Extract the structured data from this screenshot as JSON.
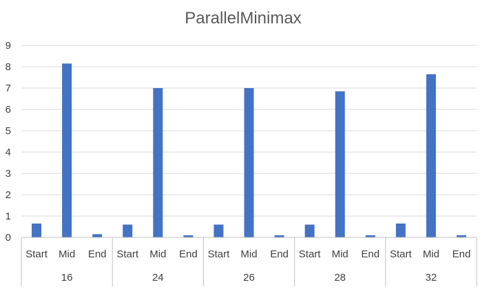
{
  "chart_data": {
    "type": "bar",
    "title": "ParallelMinimax",
    "xlabel": "",
    "ylabel": "",
    "ylim": [
      0,
      9
    ],
    "yticks": [
      0,
      1,
      2,
      3,
      4,
      5,
      6,
      7,
      8,
      9
    ],
    "grid": true,
    "legend": "none",
    "groups": [
      "16",
      "24",
      "26",
      "28",
      "32"
    ],
    "subcategories": [
      "Start",
      "Mid",
      "End"
    ],
    "values": [
      [
        0.65,
        8.15,
        0.15
      ],
      [
        0.6,
        7.0,
        0.1
      ],
      [
        0.6,
        7.0,
        0.1
      ],
      [
        0.6,
        6.85,
        0.1
      ],
      [
        0.65,
        7.65,
        0.1
      ]
    ],
    "colors": {
      "bar": "#4472C4",
      "grid": "#D9D9D9",
      "axis": "#BFBFBF"
    }
  }
}
